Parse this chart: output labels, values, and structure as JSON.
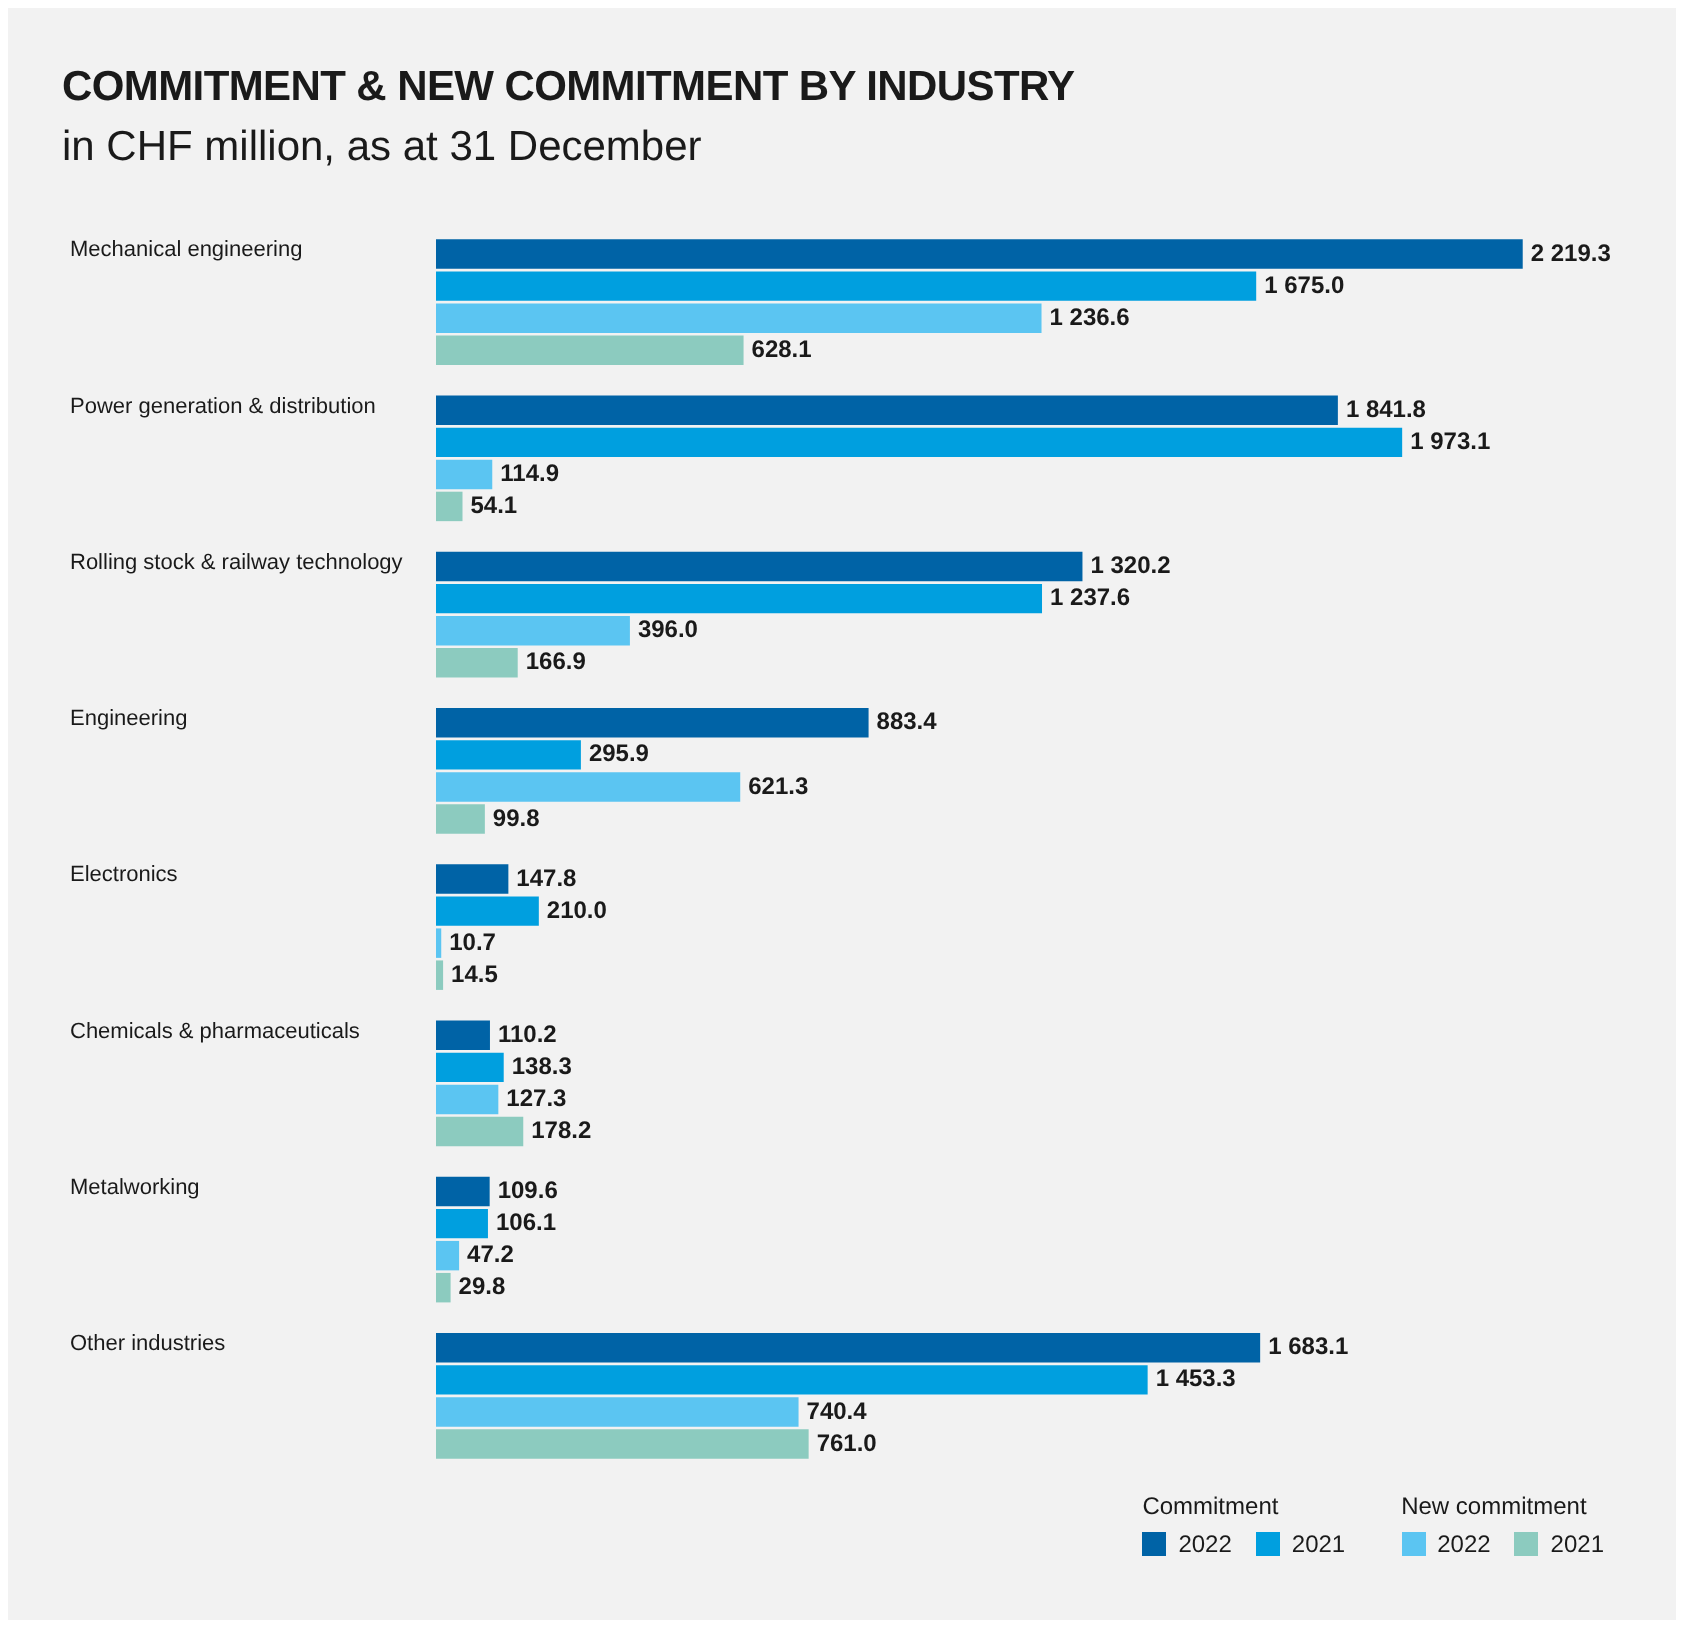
{
  "chart_data": {
    "type": "bar",
    "orientation": "horizontal",
    "title": "COMMITMENT & NEW COMMITMENT BY INDUSTRY",
    "subtitle": "in CHF million, as at 31 December",
    "categories": [
      "Mechanical engineering",
      "Power generation & distribution",
      "Rolling stock & railway technology",
      "Engineering",
      "Electronics",
      "Chemicals & pharmaceuticals",
      "Metalworking",
      "Other industries"
    ],
    "series": [
      {
        "name": "2022",
        "color": "#0063a6",
        "values": [
          2219.3,
          1841.8,
          1320.2,
          883.4,
          147.8,
          110.2,
          109.6,
          1683.1
        ],
        "value_labels": [
          "2 219.3",
          "1 841.8",
          "1 320.2",
          "883.4",
          "147.8",
          "110.2",
          "109.6",
          "1 683.1"
        ]
      },
      {
        "name": "2021",
        "color": "#009fdf",
        "values": [
          1675.0,
          1973.1,
          1237.6,
          295.9,
          210.0,
          138.3,
          106.1,
          1453.3
        ],
        "value_labels": [
          "1 675.0",
          "1 973.1",
          "1 237.6",
          "295.9",
          "210.0",
          "138.3",
          "106.1",
          "1 453.3"
        ]
      },
      {
        "name": "2022",
        "color": "#5bc5f2",
        "values": [
          1236.6,
          114.9,
          396.0,
          621.3,
          10.7,
          127.3,
          47.2,
          740.4
        ],
        "value_labels": [
          "1 236.6",
          "114.9",
          "396.0",
          "621.3",
          "10.7",
          "127.3",
          "47.2",
          "740.4"
        ]
      },
      {
        "name": "2021",
        "color": "#8ccbbf",
        "values": [
          628.1,
          54.1,
          166.9,
          99.8,
          14.5,
          178.2,
          29.8,
          761.0
        ],
        "value_labels": [
          "628.1",
          "54.1",
          "166.9",
          "99.8",
          "14.5",
          "178.2",
          "29.8",
          "761.0"
        ]
      }
    ],
    "annotations": [
      "Commitment",
      "New commitment"
    ],
    "legend": "bottom right"
  }
}
